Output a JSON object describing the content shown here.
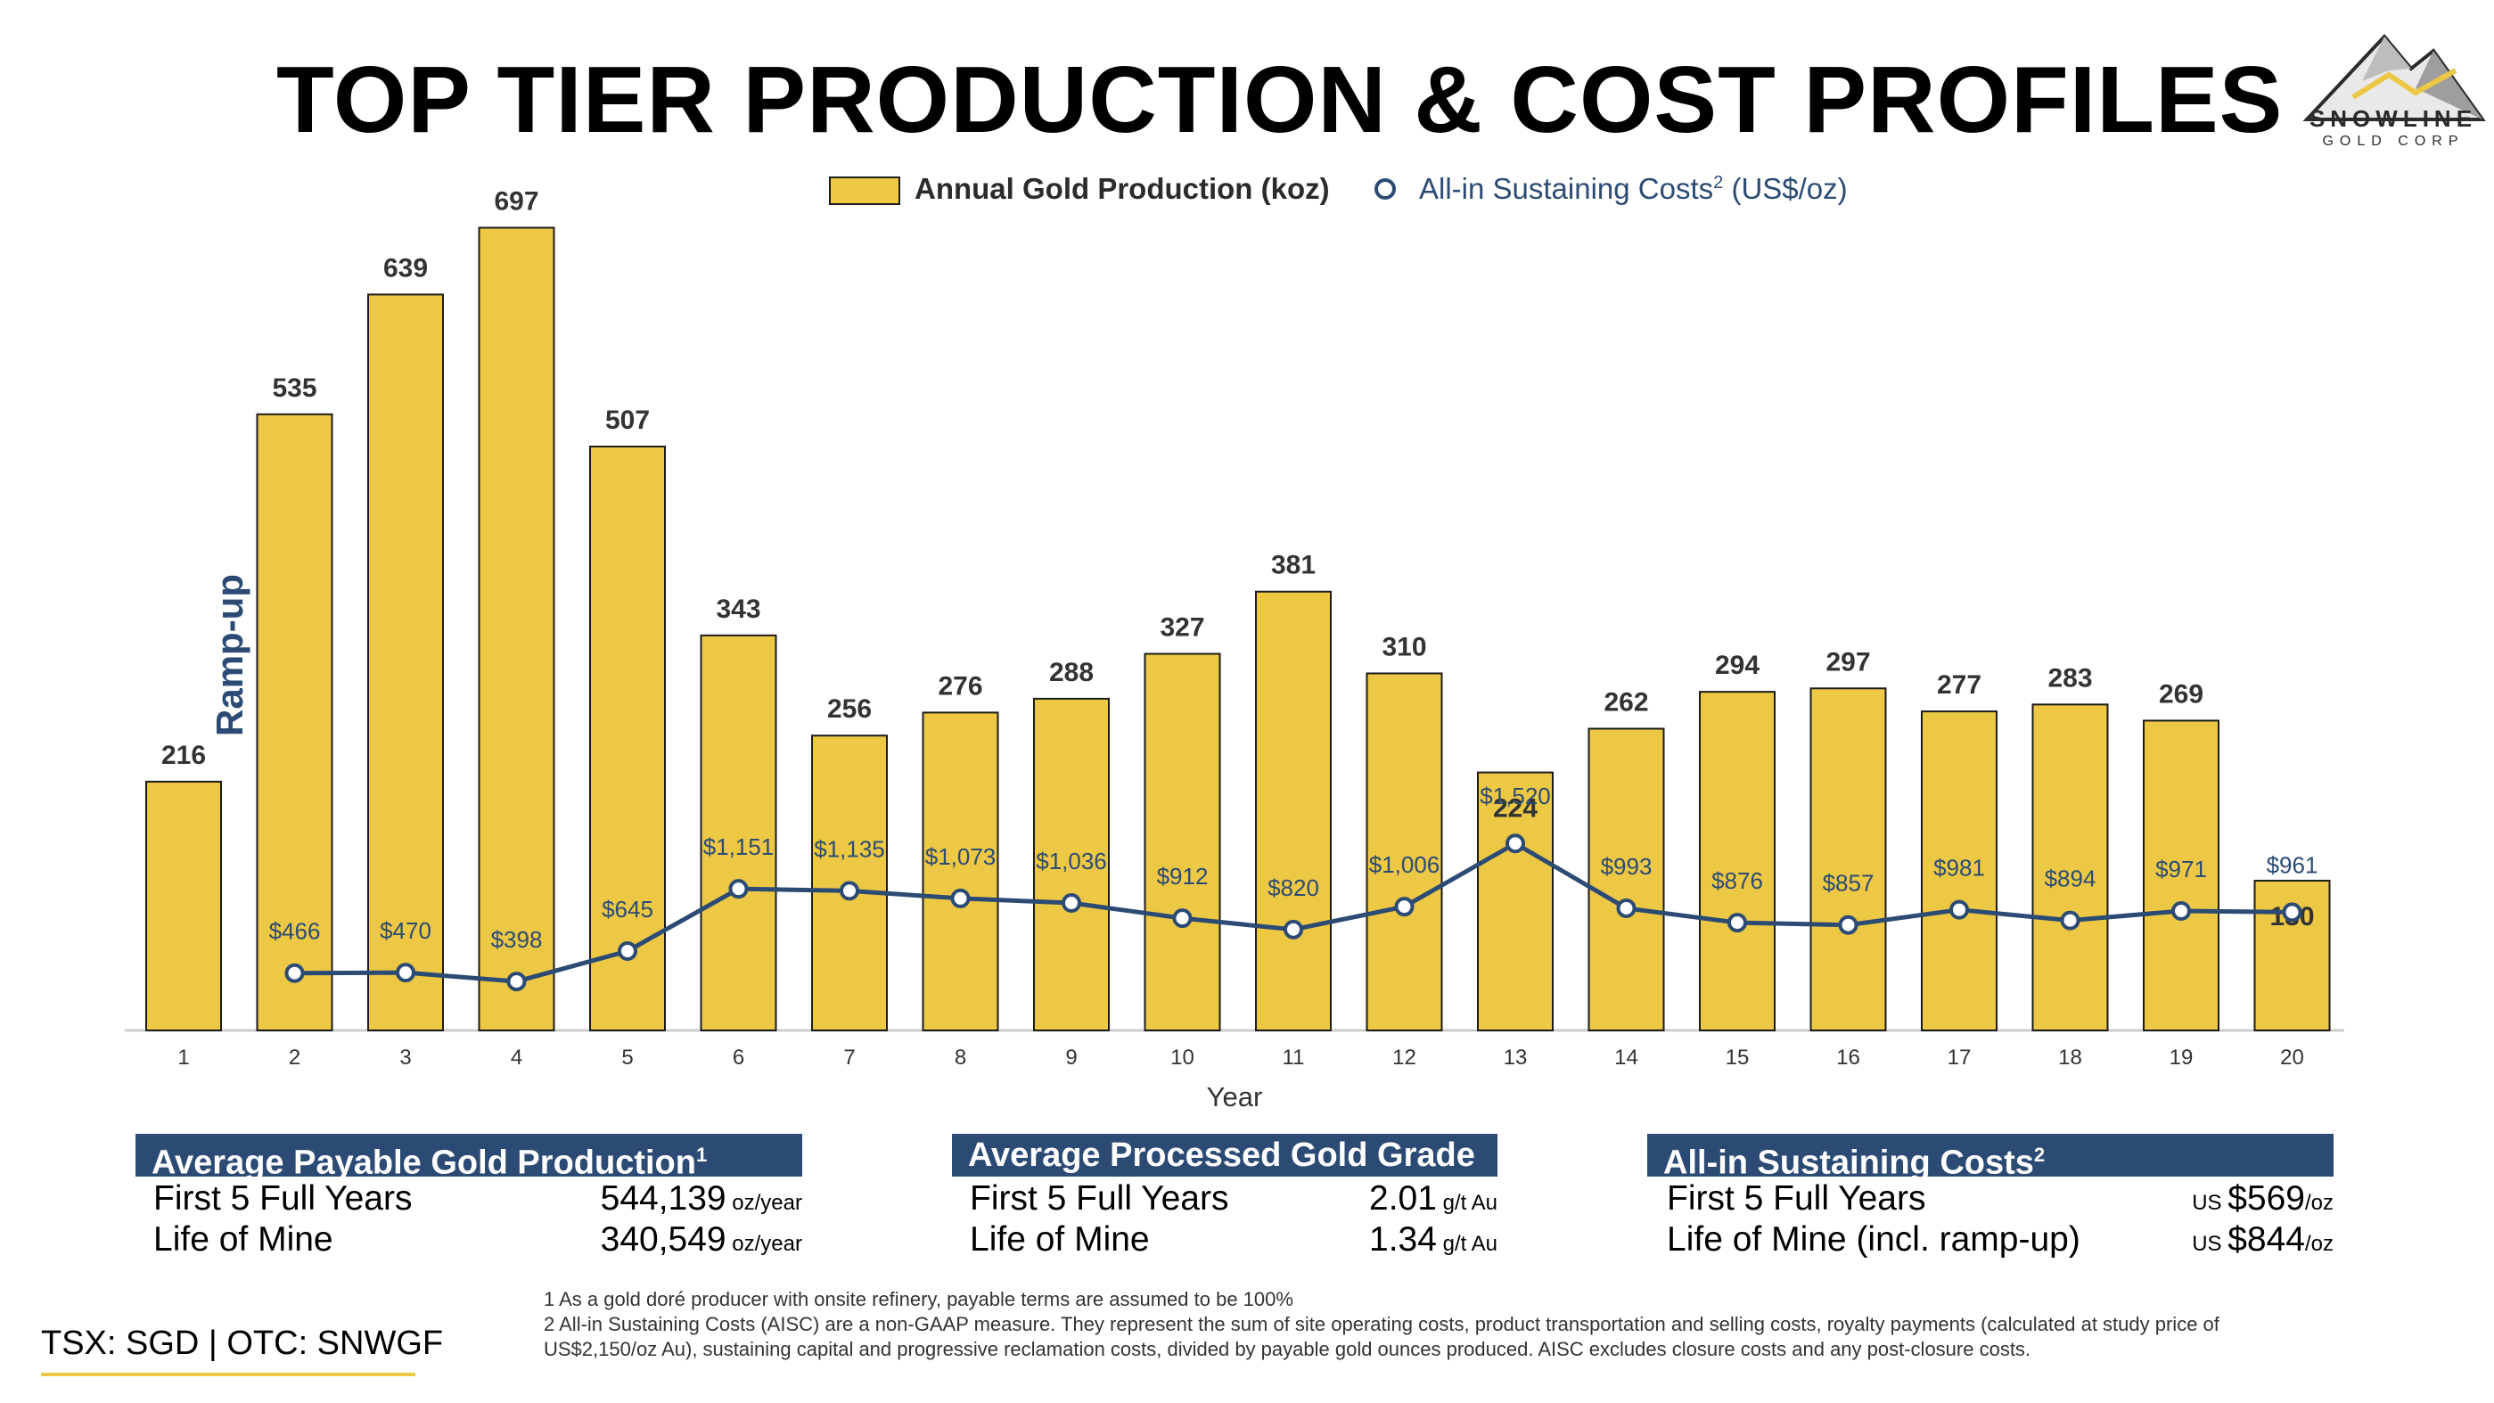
{
  "title": "TOP TIER PRODUCTION & COST PROFILES",
  "logo": {
    "name": "SNOWLINE",
    "sub": "GOLD CORP"
  },
  "legend": {
    "bar_label": "Annual Gold Production (koz)",
    "line_label": "All-in Sustaining Costs",
    "line_sup": "2",
    "line_unit": " (US$/oz)"
  },
  "ramp_label": "Ramp-up",
  "chart_data": {
    "type": "bar",
    "xlabel": "Year",
    "ylim_bar": [
      0,
      720
    ],
    "ylim_line": [
      0,
      5000
    ],
    "categories": [
      "1",
      "2",
      "3",
      "4",
      "5",
      "6",
      "7",
      "8",
      "9",
      "10",
      "11",
      "12",
      "13",
      "14",
      "15",
      "16",
      "17",
      "18",
      "19",
      "20"
    ],
    "series": [
      {
        "name": "Annual Gold Production (koz)",
        "type": "bar",
        "values": [
          216,
          535,
          639,
          697,
          507,
          343,
          256,
          276,
          288,
          327,
          381,
          310,
          224,
          262,
          294,
          297,
          277,
          283,
          269,
          130
        ],
        "labels": [
          "216",
          "535",
          "639",
          "697",
          "507",
          "343",
          "256",
          "276",
          "288",
          "327",
          "381",
          "310",
          "224",
          "262",
          "294",
          "297",
          "277",
          "283",
          "269",
          "130"
        ]
      },
      {
        "name": "All-in Sustaining Costs2 (US$/oz)",
        "type": "line",
        "values": [
          null,
          466,
          470,
          398,
          645,
          1151,
          1135,
          1073,
          1036,
          912,
          820,
          1006,
          1520,
          993,
          876,
          857,
          981,
          894,
          971,
          961
        ],
        "labels": [
          "",
          "$466",
          "$470",
          "$398",
          "$645",
          "$1,151",
          "$1,135",
          "$1,073",
          "$1,036",
          "$912",
          "$820",
          "$1,006",
          "$1,520",
          "$993",
          "$876",
          "$857",
          "$981",
          "$894",
          "$971",
          "$961"
        ]
      }
    ],
    "colors": {
      "bar": "#ecc845",
      "bar_edge": "#1b1b1b",
      "line": "#2c4b74",
      "axis": "#cccccc"
    }
  },
  "stats": [
    {
      "heading": "Average Payable Gold Production",
      "sup": "1",
      "rows": [
        {
          "label": "First 5 Full Years",
          "prefix": "",
          "value": "544,139",
          "unit": " oz/year"
        },
        {
          "label": "Life of Mine",
          "prefix": "",
          "value": "340,549",
          "unit": " oz/year"
        }
      ]
    },
    {
      "heading": "Average Processed Gold Grade",
      "sup": "",
      "rows": [
        {
          "label": "First 5 Full Years",
          "prefix": "",
          "value": "2.01",
          "unit": " g/t Au"
        },
        {
          "label": "Life of Mine",
          "prefix": "",
          "value": "1.34",
          "unit": " g/t Au"
        }
      ]
    },
    {
      "heading": "All-in Sustaining Costs",
      "sup": "2",
      "rows": [
        {
          "label": "First 5 Full Years",
          "prefix": "US ",
          "value": "$569",
          "unit": "/oz"
        },
        {
          "label": "Life of Mine (incl. ramp-up)",
          "prefix": "US ",
          "value": "$844",
          "unit": "/oz"
        }
      ]
    }
  ],
  "footnotes": [
    "1 As a gold doré producer with onsite refinery, payable terms are assumed to be 100%",
    "2 All-in Sustaining Costs (AISC) are a non-GAAP measure. They represent the sum of site operating costs, product transportation and selling costs, royalty payments (calculated at study price of US$2,150/oz Au), sustaining capital and progressive reclamation costs, divided by payable gold ounces produced.  AISC excludes closure costs and any post-closure costs."
  ],
  "ticker": "TSX: SGD | OTC: SNWGF"
}
